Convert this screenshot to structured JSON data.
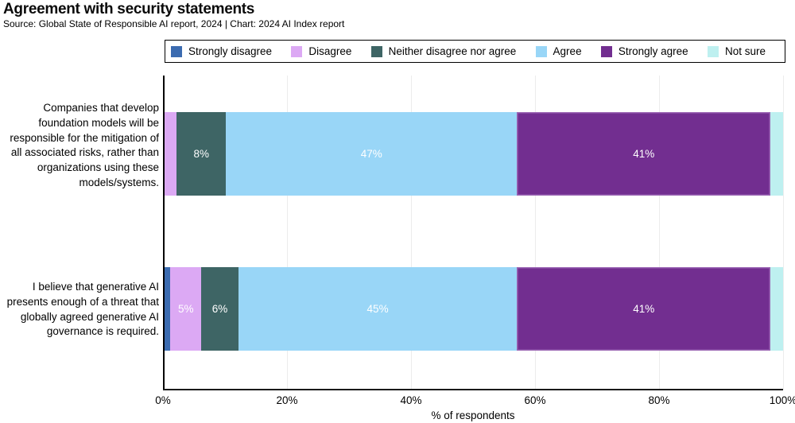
{
  "header": {
    "title": "Agreement with security statements",
    "subtitle": "Source: Global State of Responsible AI report, 2024 | Chart: 2024 AI Index report"
  },
  "colors": {
    "strongly_disagree": "#3B6BB0",
    "disagree": "#DCA9F4",
    "neither": "#3E6565",
    "agree": "#99D6F7",
    "strongly_agree": "#722E90",
    "not_sure": "#BEF0F0",
    "gridline": "#ECECEC",
    "axis": "#000000",
    "value_label": "#FFFFFF"
  },
  "legend": {
    "position": "top",
    "items": [
      {
        "label": "Strongly disagree",
        "color": "#3B6BB0"
      },
      {
        "label": "Disagree",
        "color": "#DCA9F4"
      },
      {
        "label": "Neither disagree nor agree",
        "color": "#3E6565"
      },
      {
        "label": "Agree",
        "color": "#99D6F7"
      },
      {
        "label": "Strongly agree",
        "color": "#722E90"
      },
      {
        "label": "Not sure",
        "color": "#BEF0F0"
      }
    ]
  },
  "chart_data": {
    "type": "bar",
    "orientation": "horizontal",
    "stacked": true,
    "title": "Agreement with security statements",
    "xlabel": "% of respondents",
    "ylabel": "",
    "xlim": [
      0,
      100
    ],
    "x_ticks": [
      {
        "value": 0,
        "label": "0%"
      },
      {
        "value": 20,
        "label": "20%"
      },
      {
        "value": 40,
        "label": "40%"
      },
      {
        "value": 60,
        "label": "60%"
      },
      {
        "value": 80,
        "label": "80%"
      },
      {
        "value": 100,
        "label": "100%"
      }
    ],
    "grid": "vertical",
    "categories": [
      "Companies that develop foundation models will be responsible for the mitigation of all associated risks, rather than organizations using these models/systems.",
      "I believe that generative AI presents enough of a threat that globally agreed generative AI governance is required."
    ],
    "series": [
      {
        "name": "Strongly disagree",
        "color": "#3B6BB0",
        "values": [
          0,
          1
        ],
        "labels": [
          "",
          ""
        ]
      },
      {
        "name": "Disagree",
        "color": "#DCA9F4",
        "values": [
          2,
          5
        ],
        "labels": [
          "",
          "5%"
        ]
      },
      {
        "name": "Neither disagree nor agree",
        "color": "#3E6565",
        "values": [
          8,
          6
        ],
        "labels": [
          "8%",
          "6%"
        ]
      },
      {
        "name": "Agree",
        "color": "#99D6F7",
        "values": [
          47,
          45
        ],
        "labels": [
          "47%",
          "45%"
        ]
      },
      {
        "name": "Strongly agree",
        "color": "#722E90",
        "values": [
          41,
          41
        ],
        "labels": [
          "41%",
          "41%"
        ]
      },
      {
        "name": "Not sure",
        "color": "#BEF0F0",
        "values": [
          2,
          2
        ],
        "labels": [
          "",
          ""
        ]
      }
    ]
  }
}
